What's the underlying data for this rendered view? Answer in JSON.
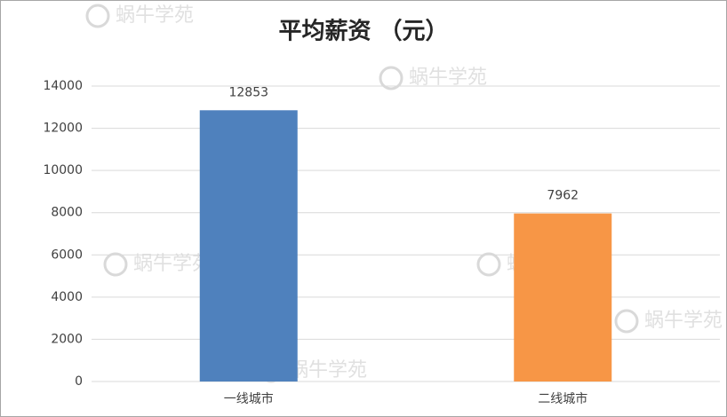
{
  "chart_data": {
    "type": "bar",
    "title": "平均薪资 （元）",
    "categories": [
      "一线城市",
      "二线城市"
    ],
    "values": [
      12853,
      7962
    ],
    "colors": [
      "#4f81bd",
      "#f79646"
    ],
    "ylim": [
      0,
      14000
    ],
    "yticks": [
      0,
      2000,
      4000,
      6000,
      8000,
      10000,
      12000,
      14000
    ],
    "grid": true,
    "watermark": "蜗牛学苑"
  }
}
